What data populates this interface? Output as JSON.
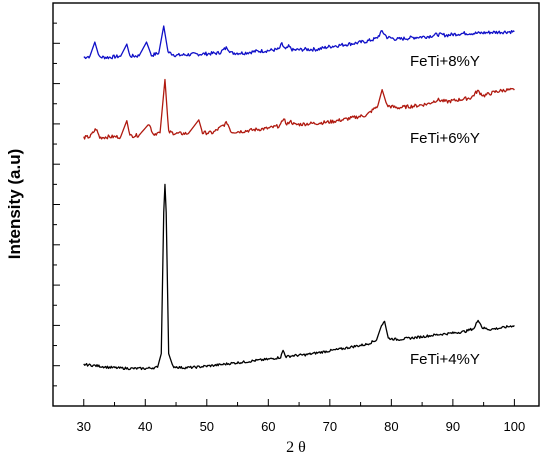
{
  "chart_data": {
    "type": "line",
    "title": "",
    "xlabel": "2 θ",
    "ylabel": "Intensity (a.u)",
    "xlim": [
      25,
      104
    ],
    "ylim": [
      0,
      100
    ],
    "x_ticks": [
      30,
      40,
      50,
      60,
      70,
      80,
      90,
      100
    ],
    "x_tick_labels": [
      "30",
      "40",
      "50",
      "60",
      "70",
      "80",
      "90",
      "100"
    ],
    "y_tick_labels_shown": false,
    "grid": false,
    "legend": "none",
    "series": [
      {
        "name": "FeTi+8%Y",
        "color": "#1010c8",
        "points": [
          [
            30,
            86.5
          ],
          [
            31,
            86.8
          ],
          [
            31.8,
            90.3
          ],
          [
            32.5,
            86.6
          ],
          [
            34,
            86.5
          ],
          [
            36,
            86.8
          ],
          [
            37,
            89.8
          ],
          [
            37.5,
            86.8
          ],
          [
            39,
            86.9
          ],
          [
            40.2,
            90.3
          ],
          [
            41,
            87
          ],
          [
            42.2,
            87.6
          ],
          [
            43,
            94.3
          ],
          [
            43.7,
            87.8
          ],
          [
            45,
            87
          ],
          [
            47,
            87.2
          ],
          [
            50,
            87.4
          ],
          [
            52,
            87.6
          ],
          [
            53.3,
            89
          ],
          [
            54,
            87.6
          ],
          [
            56,
            87.6
          ],
          [
            58,
            88
          ],
          [
            60,
            88.2
          ],
          [
            61.7,
            88.5
          ],
          [
            62.2,
            89.8
          ],
          [
            62.8,
            88.4
          ],
          [
            63.3,
            89.2
          ],
          [
            64,
            88.3
          ],
          [
            66,
            88.5
          ],
          [
            68,
            88.5
          ],
          [
            70,
            89.2
          ],
          [
            72,
            89.6
          ],
          [
            74,
            90
          ],
          [
            76,
            90.5
          ],
          [
            77.6,
            91.2
          ],
          [
            78.5,
            93
          ],
          [
            79.3,
            91.5
          ],
          [
            81,
            91
          ],
          [
            84,
            91.5
          ],
          [
            86,
            91.7
          ],
          [
            87.5,
            92.2
          ],
          [
            89,
            92
          ],
          [
            90.5,
            92.3
          ],
          [
            92,
            92.5
          ],
          [
            94,
            92.5
          ],
          [
            96,
            92.7
          ],
          [
            98,
            92.8
          ],
          [
            100,
            92.9
          ]
        ]
      },
      {
        "name": "FeTi+6%Y",
        "color": "#b01a10",
        "points": [
          [
            30,
            66.6
          ],
          [
            31,
            66.8
          ],
          [
            32,
            68.8
          ],
          [
            32.6,
            66.6
          ],
          [
            34,
            66.8
          ],
          [
            36,
            66.8
          ],
          [
            37,
            70.8
          ],
          [
            37.5,
            67
          ],
          [
            39,
            67.2
          ],
          [
            40.6,
            70
          ],
          [
            41.3,
            67.5
          ],
          [
            42.4,
            67.8
          ],
          [
            43.2,
            81
          ],
          [
            43.8,
            68
          ],
          [
            45,
            67.6
          ],
          [
            47,
            67.6
          ],
          [
            48.7,
            71
          ],
          [
            49.3,
            67.8
          ],
          [
            51,
            67.8
          ],
          [
            53.3,
            70.3
          ],
          [
            54,
            68
          ],
          [
            56,
            68.2
          ],
          [
            58,
            68.6
          ],
          [
            60,
            68.9
          ],
          [
            62,
            69.6
          ],
          [
            62.5,
            71.6
          ],
          [
            63,
            69.6
          ],
          [
            63.5,
            70.8
          ],
          [
            64.3,
            69.8
          ],
          [
            66,
            70
          ],
          [
            68,
            70.2
          ],
          [
            70,
            70.5
          ],
          [
            72,
            71
          ],
          [
            74,
            71.6
          ],
          [
            76,
            72.2
          ],
          [
            77.8,
            74.5
          ],
          [
            78.5,
            78.5
          ],
          [
            79.3,
            74.5
          ],
          [
            81,
            74
          ],
          [
            84,
            74.5
          ],
          [
            86,
            75
          ],
          [
            87.5,
            76
          ],
          [
            89,
            75.5
          ],
          [
            91,
            76
          ],
          [
            93,
            76.5
          ],
          [
            94,
            78.2
          ],
          [
            95,
            77
          ],
          [
            97,
            78
          ],
          [
            98.5,
            78.4
          ],
          [
            100,
            78.4
          ]
        ]
      },
      {
        "name": "FeTi+4%Y",
        "color": "#000000",
        "points": [
          [
            30,
            10.3
          ],
          [
            32,
            10
          ],
          [
            34,
            9.6
          ],
          [
            36,
            9.4
          ],
          [
            38,
            9.3
          ],
          [
            40,
            9.3
          ],
          [
            42,
            9.6
          ],
          [
            42.6,
            13
          ],
          [
            43,
            48
          ],
          [
            43.2,
            55
          ],
          [
            43.4,
            48
          ],
          [
            43.8,
            13
          ],
          [
            44.5,
            9.8
          ],
          [
            46,
            9.5
          ],
          [
            48,
            9.6
          ],
          [
            50,
            9.9
          ],
          [
            52,
            10.2
          ],
          [
            54,
            10.6
          ],
          [
            56,
            10.9
          ],
          [
            58,
            11.3
          ],
          [
            60,
            11.6
          ],
          [
            62,
            12.1
          ],
          [
            62.4,
            13.8
          ],
          [
            62.9,
            12.2
          ],
          [
            64,
            12.5
          ],
          [
            66,
            12.7
          ],
          [
            68,
            13.2
          ],
          [
            70,
            13.7
          ],
          [
            72,
            14.2
          ],
          [
            74,
            14.8
          ],
          [
            76,
            15.3
          ],
          [
            77.6,
            16.4
          ],
          [
            78.4,
            20
          ],
          [
            78.9,
            21
          ],
          [
            79.5,
            16.8
          ],
          [
            81,
            16.5
          ],
          [
            84,
            17
          ],
          [
            86,
            17.4
          ],
          [
            88,
            17.8
          ],
          [
            90,
            18.1
          ],
          [
            92,
            18.5
          ],
          [
            93.5,
            19.3
          ],
          [
            94.1,
            21.5
          ],
          [
            94.8,
            19.4
          ],
          [
            96,
            19
          ],
          [
            98,
            19.4
          ],
          [
            100,
            20
          ]
        ]
      }
    ]
  }
}
